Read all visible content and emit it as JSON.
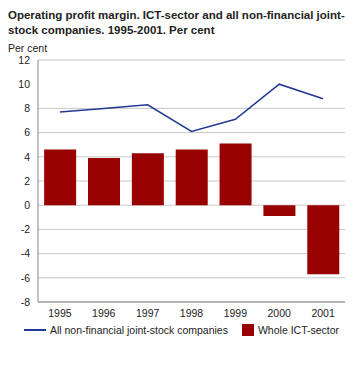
{
  "chart_data": {
    "type": "bar",
    "title": "Operating profit margin. ICT-sector and all non-financial joint-stock companies. 1995-2001. Per cent",
    "y_label": "Per cent",
    "categories": [
      "1995",
      "1996",
      "1997",
      "1998",
      "1999",
      "2000",
      "2001"
    ],
    "series": [
      {
        "name": "All non-financial joint-stock companies",
        "type": "line",
        "color": "#1f3a93",
        "values": [
          7.7,
          8.0,
          8.3,
          6.1,
          7.1,
          10.0,
          8.8
        ]
      },
      {
        "name": "Whole ICT-sector",
        "type": "bar",
        "color": "#990000",
        "values": [
          4.6,
          3.9,
          4.3,
          4.6,
          5.1,
          -0.9,
          -5.7
        ]
      }
    ],
    "ylim": [
      -8,
      12
    ],
    "yticks": [
      -8,
      -6,
      -4,
      -2,
      0,
      2,
      4,
      6,
      8,
      10,
      12
    ],
    "grid": true,
    "legend": "bottom"
  }
}
